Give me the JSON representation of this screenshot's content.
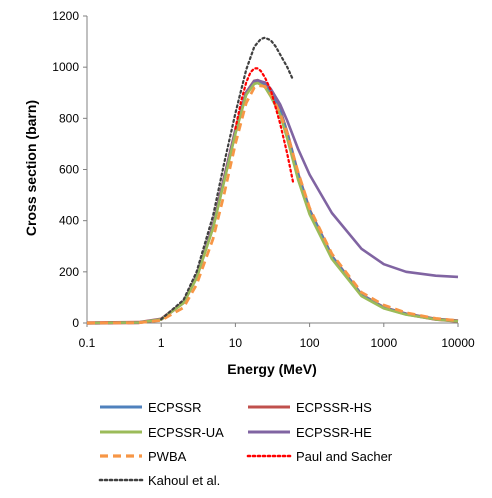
{
  "chart_data": {
    "type": "line",
    "title": "",
    "xlabel": "Energy (MeV)",
    "ylabel": "Cross section (barn)",
    "xscale": "log",
    "xlim": [
      0.1,
      10000
    ],
    "ylim": [
      0,
      1200
    ],
    "xticks": [
      0.1,
      1,
      10,
      100,
      1000,
      10000
    ],
    "xtick_labels": [
      "0.1",
      "1",
      "10",
      "100",
      "1000",
      "10000"
    ],
    "yticks": [
      0,
      200,
      400,
      600,
      800,
      1000,
      1200
    ],
    "ytick_labels": [
      "0",
      "200",
      "400",
      "600",
      "800",
      "1000",
      "1200"
    ],
    "grid": false,
    "legend_position": "bottom",
    "series": [
      {
        "name": "ECPSSR",
        "color": "#4F81BD",
        "style": "solid",
        "x": [
          0.1,
          0.5,
          1,
          2,
          3,
          5,
          7,
          10,
          14,
          18,
          20,
          25,
          30,
          40,
          50,
          70,
          100,
          200,
          500,
          1000,
          2000,
          5000,
          10000
        ],
        "y": [
          0,
          2,
          15,
          80,
          180,
          380,
          560,
          750,
          900,
          945,
          948,
          935,
          900,
          830,
          740,
          580,
          440,
          260,
          110,
          60,
          35,
          15,
          8
        ]
      },
      {
        "name": "ECPSSR-HS",
        "color": "#C0504D",
        "style": "solid",
        "x": [
          0.1,
          0.5,
          1,
          2,
          3,
          5,
          7,
          10,
          14,
          18,
          20,
          25,
          30,
          40,
          50,
          70,
          100,
          200,
          500,
          1000,
          2000,
          5000,
          10000
        ],
        "y": [
          0,
          2,
          15,
          80,
          180,
          380,
          560,
          750,
          900,
          945,
          948,
          935,
          900,
          830,
          740,
          580,
          440,
          260,
          110,
          60,
          35,
          15,
          8
        ]
      },
      {
        "name": "ECPSSR-UA",
        "color": "#9BBB59",
        "style": "solid",
        "x": [
          0.1,
          0.5,
          1,
          2,
          3,
          5,
          7,
          10,
          14,
          18,
          20,
          25,
          30,
          40,
          50,
          70,
          100,
          200,
          500,
          1000,
          2000,
          5000,
          10000
        ],
        "y": [
          0,
          2,
          14,
          78,
          176,
          372,
          550,
          740,
          892,
          935,
          938,
          922,
          885,
          815,
          720,
          560,
          425,
          250,
          105,
          57,
          33,
          14,
          7
        ]
      },
      {
        "name": "ECPSSR-HE",
        "color": "#8064A2",
        "style": "solid",
        "x": [
          0.1,
          0.5,
          1,
          2,
          3,
          5,
          7,
          10,
          14,
          18,
          20,
          25,
          30,
          40,
          50,
          70,
          100,
          200,
          500,
          1000,
          2000,
          5000,
          10000
        ],
        "y": [
          0,
          2,
          15,
          80,
          180,
          380,
          560,
          750,
          900,
          945,
          948,
          940,
          915,
          855,
          790,
          680,
          580,
          430,
          290,
          230,
          200,
          185,
          180
        ]
      },
      {
        "name": "PWBA",
        "color": "#F79646",
        "style": "dash",
        "x": [
          0.1,
          0.5,
          1,
          2,
          3,
          5,
          7,
          10,
          14,
          18,
          20,
          25,
          30,
          40,
          50,
          70,
          100,
          200,
          500,
          1000,
          2000,
          5000,
          10000
        ],
        "y": [
          0,
          1,
          10,
          60,
          150,
          330,
          500,
          700,
          860,
          920,
          928,
          925,
          895,
          820,
          740,
          590,
          450,
          270,
          120,
          70,
          40,
          18,
          9
        ]
      },
      {
        "name": "Paul and Sacher",
        "color": "#FF0000",
        "style": "dot",
        "x": [
          10,
          12,
          14,
          16,
          18,
          20,
          22,
          25,
          30,
          35,
          40,
          50,
          60
        ],
        "y": [
          760,
          870,
          940,
          980,
          995,
          995,
          985,
          960,
          910,
          840,
          780,
          660,
          550
        ]
      },
      {
        "name": "Kahoul et al.",
        "color": "#404040",
        "style": "dot",
        "x": [
          1,
          2,
          3,
          5,
          7,
          10,
          14,
          18,
          22,
          25,
          30,
          35,
          40,
          50,
          60
        ],
        "y": [
          15,
          90,
          200,
          420,
          620,
          820,
          990,
          1080,
          1110,
          1115,
          1105,
          1080,
          1050,
          1000,
          950
        ]
      }
    ]
  }
}
